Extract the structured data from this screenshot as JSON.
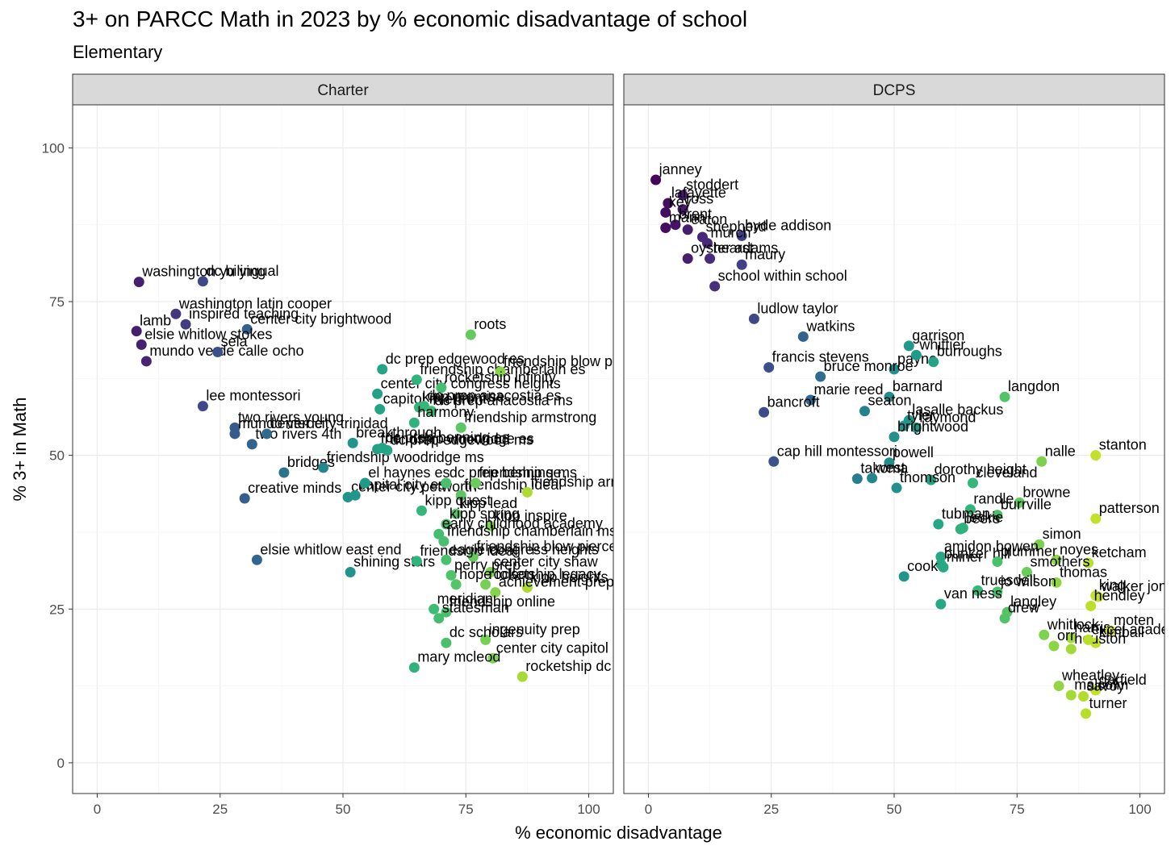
{
  "title": "3+ on PARCC Math in 2023 by % economic disadvantage of school",
  "subtitle": "Elementary",
  "chart_data": {
    "type": "scatter",
    "xlabel": "% economic disadvantage",
    "ylabel": "% 3+ in Math",
    "xlim": [
      -5,
      105
    ],
    "ylim": [
      -5,
      107
    ],
    "xticks": [
      0,
      25,
      50,
      75,
      100
    ],
    "yticks": [
      0,
      25,
      50,
      75,
      100
    ],
    "grid": true,
    "color_scale": "viridis by x",
    "facets": [
      {
        "name": "Charter",
        "points": [
          {
            "label": "washington yu ying",
            "x": 8.5,
            "y": 78.2
          },
          {
            "label": "dc bilingual",
            "x": 21.5,
            "y": 78.3
          },
          {
            "label": "washington latin cooper",
            "x": 16,
            "y": 73
          },
          {
            "label": "center city brightwood",
            "x": 30.5,
            "y": 70.5
          },
          {
            "label": "lamb",
            "x": 8,
            "y": 70.2
          },
          {
            "label": "elsie whitlow stokes",
            "x": 9,
            "y": 68
          },
          {
            "label": "inspired teaching",
            "x": 18,
            "y": 71.3
          },
          {
            "label": "mundo verde calle ocho",
            "x": 10,
            "y": 65.3
          },
          {
            "label": "sela",
            "x": 24.5,
            "y": 66.8
          },
          {
            "label": "lee montessori",
            "x": 21.5,
            "y": 58
          },
          {
            "label": "two rivers young",
            "x": 28,
            "y": 54.5
          },
          {
            "label": "mundo verde",
            "x": 28,
            "y": 53.5
          },
          {
            "label": "two rivers 4th",
            "x": 31.5,
            "y": 51.8
          },
          {
            "label": "bridges",
            "x": 38,
            "y": 47.2
          },
          {
            "label": "friendship woodridge ms",
            "x": 46,
            "y": 48
          },
          {
            "label": "creative minds",
            "x": 30,
            "y": 43
          },
          {
            "label": "center city petworth",
            "x": 51,
            "y": 43.2
          },
          {
            "label": "capital city es",
            "x": 52.5,
            "y": 43.5
          },
          {
            "label": "el haynes es",
            "x": 54.5,
            "y": 45.5
          },
          {
            "label": "elsie whitlow east end",
            "x": 32.5,
            "y": 33
          },
          {
            "label": "shining stars",
            "x": 51.5,
            "y": 31
          },
          {
            "label": "center city trinidad",
            "x": 34.5,
            "y": 53.5
          },
          {
            "label": "center city congress heights",
            "x": 57,
            "y": 60
          },
          {
            "label": "capitol riverfront",
            "x": 57.5,
            "y": 57.5
          },
          {
            "label": "dc prep edgewood es",
            "x": 58,
            "y": 64
          },
          {
            "label": "friendship chamberlain es",
            "x": 65,
            "y": 62.3
          },
          {
            "label": "kipp promise",
            "x": 65.5,
            "y": 57.8
          },
          {
            "label": "roots",
            "x": 76,
            "y": 69.6
          },
          {
            "label": "friendship blow pierce es",
            "x": 82,
            "y": 63.6
          },
          {
            "label": "rocketship infinity",
            "x": 70,
            "y": 61
          },
          {
            "label": "breakthrough",
            "x": 52,
            "y": 52
          },
          {
            "label": "dc prep edgewood ms",
            "x": 59,
            "y": 50.8
          },
          {
            "label": "dc prep anacostia es",
            "x": 66.5,
            "y": 58
          },
          {
            "label": "dc prep anacostia ms",
            "x": 68,
            "y": 57.2
          },
          {
            "label": "friendship armstrong",
            "x": 74,
            "y": 54.5
          },
          {
            "label": "friendship woodridge es",
            "x": 57,
            "y": 51
          },
          {
            "label": "dc prep benning es",
            "x": 58,
            "y": 51.2
          },
          {
            "label": "harmony",
            "x": 64.5,
            "y": 55.3
          },
          {
            "label": "dc prep benning ms",
            "x": 71,
            "y": 45.5
          },
          {
            "label": "friendship ideal",
            "x": 74,
            "y": 43.5
          },
          {
            "label": "friendship se",
            "x": 77,
            "y": 45.5
          },
          {
            "label": "friendship armstrong",
            "x": 87.5,
            "y": 44
          },
          {
            "label": "kipp quest",
            "x": 66,
            "y": 41
          },
          {
            "label": "kipp lead",
            "x": 73,
            "y": 40.5
          },
          {
            "label": "kipp inspire",
            "x": 80,
            "y": 38.5
          },
          {
            "label": "kipp spring",
            "x": 71,
            "y": 38.8
          },
          {
            "label": "early childhood academy",
            "x": 69.5,
            "y": 37.2
          },
          {
            "label": "friendship chamberlain ms",
            "x": 70.5,
            "y": 36
          },
          {
            "label": "friendship ideal",
            "x": 65,
            "y": 32.8
          },
          {
            "label": "friendship blow pierce ms",
            "x": 76.5,
            "y": 33.5
          },
          {
            "label": "eagle congress heights",
            "x": 71,
            "y": 33
          },
          {
            "label": "center city shaw",
            "x": 80,
            "y": 31
          },
          {
            "label": "perry prep",
            "x": 72,
            "y": 30.5
          },
          {
            "label": "kipp heights",
            "x": 87.5,
            "y": 28.5
          },
          {
            "label": "hope tolson",
            "x": 73,
            "y": 29
          },
          {
            "label": "rocketship legacy",
            "x": 79,
            "y": 29
          },
          {
            "label": "achievement prep",
            "x": 81,
            "y": 27.7
          },
          {
            "label": "meridian",
            "x": 68.5,
            "y": 25
          },
          {
            "label": "friendship online",
            "x": 71,
            "y": 24.5
          },
          {
            "label": "statesman",
            "x": 69.5,
            "y": 23.5
          },
          {
            "label": "ingenuity prep",
            "x": 79,
            "y": 20
          },
          {
            "label": "dc scholars",
            "x": 71,
            "y": 19.5
          },
          {
            "label": "center city capitol hill",
            "x": 80.5,
            "y": 17
          },
          {
            "label": "mary mcleod",
            "x": 64.5,
            "y": 15.5
          },
          {
            "label": "rocketship dc",
            "x": 86.5,
            "y": 14
          }
        ]
      },
      {
        "name": "DCPS",
        "points": [
          {
            "label": "janney",
            "x": 1.5,
            "y": 94.8
          },
          {
            "label": "stoddert",
            "x": 7,
            "y": 92.3
          },
          {
            "label": "lafayette",
            "x": 4,
            "y": 91
          },
          {
            "label": "ross",
            "x": 7,
            "y": 90
          },
          {
            "label": "key",
            "x": 3.5,
            "y": 89.5
          },
          {
            "label": "brent",
            "x": 5.5,
            "y": 87.5
          },
          {
            "label": "mann",
            "x": 3.5,
            "y": 87
          },
          {
            "label": "eaton",
            "x": 8,
            "y": 86.7
          },
          {
            "label": "hyde addison",
            "x": 19,
            "y": 85.7
          },
          {
            "label": "shepherd",
            "x": 11,
            "y": 85.5
          },
          {
            "label": "murch",
            "x": 12,
            "y": 84.5
          },
          {
            "label": "oyster adams",
            "x": 8,
            "y": 82
          },
          {
            "label": "hearst",
            "x": 12.5,
            "y": 82
          },
          {
            "label": "maury",
            "x": 19,
            "y": 81
          },
          {
            "label": "school within school",
            "x": 13.5,
            "y": 77.5
          },
          {
            "label": "ludlow taylor",
            "x": 21.5,
            "y": 72.2
          },
          {
            "label": "watkins",
            "x": 31.5,
            "y": 69.3
          },
          {
            "label": "garrison",
            "x": 53,
            "y": 67.8
          },
          {
            "label": "payne",
            "x": 50,
            "y": 64
          },
          {
            "label": "burroughs",
            "x": 58,
            "y": 65.2
          },
          {
            "label": "whittier",
            "x": 54.5,
            "y": 66.3
          },
          {
            "label": "francis stevens",
            "x": 24.5,
            "y": 64.3
          },
          {
            "label": "bruce monroe",
            "x": 35,
            "y": 62.8
          },
          {
            "label": "langdon",
            "x": 72.5,
            "y": 59.5
          },
          {
            "label": "marie reed",
            "x": 33,
            "y": 59
          },
          {
            "label": "barnard",
            "x": 49,
            "y": 59.5
          },
          {
            "label": "lasalle backus",
            "x": 53,
            "y": 55.7
          },
          {
            "label": "bancroft",
            "x": 23.5,
            "y": 57
          },
          {
            "label": "seaton",
            "x": 44,
            "y": 57.2
          },
          {
            "label": "tyler",
            "x": 52,
            "y": 54.8
          },
          {
            "label": "raymond",
            "x": 54.5,
            "y": 54.5
          },
          {
            "label": "brightwood",
            "x": 50,
            "y": 53
          },
          {
            "label": "dorothy height",
            "x": 57.5,
            "y": 46
          },
          {
            "label": "cap hill montessori",
            "x": 25.5,
            "y": 49
          },
          {
            "label": "stanton",
            "x": 91,
            "y": 50
          },
          {
            "label": "powell",
            "x": 49,
            "y": 48.8
          },
          {
            "label": "takoma",
            "x": 42.5,
            "y": 46.2
          },
          {
            "label": "west",
            "x": 45.5,
            "y": 46.3
          },
          {
            "label": "cleveland",
            "x": 66,
            "y": 45.5
          },
          {
            "label": "nalle",
            "x": 80,
            "y": 49
          },
          {
            "label": "thomson",
            "x": 50.5,
            "y": 44.7
          },
          {
            "label": "browne",
            "x": 75.5,
            "y": 42.3
          },
          {
            "label": "randle",
            "x": 65.5,
            "y": 41.2
          },
          {
            "label": "patterson",
            "x": 91,
            "y": 39.7
          },
          {
            "label": "burrville",
            "x": 71,
            "y": 40.3
          },
          {
            "label": "tubman",
            "x": 59,
            "y": 38.8
          },
          {
            "label": "beers",
            "x": 63.5,
            "y": 38
          },
          {
            "label": "leckie",
            "x": 64,
            "y": 38.2
          },
          {
            "label": "simon",
            "x": 79.5,
            "y": 35.5
          },
          {
            "label": "amidon bowen",
            "x": 59.5,
            "y": 33.5
          },
          {
            "label": "noyes",
            "x": 83,
            "y": 33
          },
          {
            "label": "ketcham",
            "x": 89.5,
            "y": 32.5
          },
          {
            "label": "bunker hill",
            "x": 59.5,
            "y": 32.3
          },
          {
            "label": "cooke",
            "x": 52,
            "y": 30.3
          },
          {
            "label": "plummer",
            "x": 71,
            "y": 32.7
          },
          {
            "label": "miner",
            "x": 60,
            "y": 31.8
          },
          {
            "label": "smothers",
            "x": 77,
            "y": 31
          },
          {
            "label": "thomas",
            "x": 83,
            "y": 29.3
          },
          {
            "label": "king",
            "x": 91,
            "y": 27.2
          },
          {
            "label": "truesdell",
            "x": 67,
            "y": 28
          },
          {
            "label": "jo wilson",
            "x": 71,
            "y": 27.8
          },
          {
            "label": "walker jones",
            "x": 91.5,
            "y": 27
          },
          {
            "label": "hendley",
            "x": 90,
            "y": 25.5
          },
          {
            "label": "van ness",
            "x": 59.5,
            "y": 25.8
          },
          {
            "label": "langley",
            "x": 73,
            "y": 24.5
          },
          {
            "label": "drew",
            "x": 72.5,
            "y": 23.5
          },
          {
            "label": "harris",
            "x": 86,
            "y": 20.3
          },
          {
            "label": "moten",
            "x": 94,
            "y": 21.5
          },
          {
            "label": "whitlock",
            "x": 80.5,
            "y": 20.8
          },
          {
            "label": "orr",
            "x": 82.5,
            "y": 19
          },
          {
            "label": "kimball",
            "x": 91,
            "y": 19.5
          },
          {
            "label": "houston",
            "x": 86,
            "y": 18.5
          },
          {
            "label": "excel academy",
            "x": 89.5,
            "y": 20
          },
          {
            "label": "wheatley",
            "x": 83.5,
            "y": 12.5
          },
          {
            "label": "garfield",
            "x": 91,
            "y": 11.8
          },
          {
            "label": "malcolm",
            "x": 86,
            "y": 11
          },
          {
            "label": "savoy",
            "x": 88.5,
            "y": 10.8
          },
          {
            "label": "turner",
            "x": 89,
            "y": 8
          }
        ]
      }
    ]
  }
}
